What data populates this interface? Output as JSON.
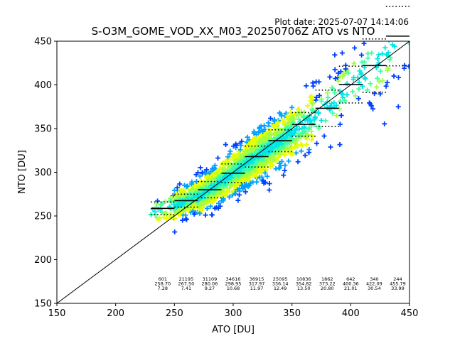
{
  "plot_date": "Plot date: 2025-07-07 14:14:06",
  "chart_data": {
    "type": "scatter",
    "title": "S-O3M_GOME_VOD_XX_M03_20250706Z ATO vs NTO",
    "xlabel": "ATO [DU]",
    "ylabel": "NTO [DU]",
    "xlim": [
      150,
      450
    ],
    "ylim": [
      150,
      450
    ],
    "xticks": [
      "150",
      "200",
      "250",
      "300",
      "350",
      "400",
      "450"
    ],
    "yticks": [
      "150",
      "200",
      "250",
      "300",
      "350",
      "400",
      "450"
    ],
    "grid": false,
    "one_to_one_line": true,
    "marker": "+",
    "density_colors": [
      "#0040ff",
      "#00a0ff",
      "#00e5e5",
      "#40ffa0",
      "#a0ff40",
      "#e5ff00",
      "#ffc000"
    ],
    "bins": [
      {
        "x_low": 230,
        "x_high": 250,
        "count": "601",
        "mean": "258.70",
        "std": "7.28",
        "mean_val": 258.7,
        "std_val": 7.28
      },
      {
        "x_low": 250,
        "x_high": 270,
        "count": "21195",
        "mean": "267.50",
        "std": "7.41",
        "mean_val": 267.5,
        "std_val": 7.41
      },
      {
        "x_low": 270,
        "x_high": 290,
        "count": "31109",
        "mean": "280.06",
        "std": "9.27",
        "mean_val": 280.06,
        "std_val": 9.27
      },
      {
        "x_low": 290,
        "x_high": 310,
        "count": "34616",
        "mean": "298.95",
        "std": "10.68",
        "mean_val": 298.95,
        "std_val": 10.68
      },
      {
        "x_low": 310,
        "x_high": 330,
        "count": "36915",
        "mean": "317.97",
        "std": "11.97",
        "mean_val": 317.97,
        "std_val": 11.97
      },
      {
        "x_low": 330,
        "x_high": 350,
        "count": "25095",
        "mean": "336.14",
        "std": "12.49",
        "mean_val": 336.14,
        "std_val": 12.49
      },
      {
        "x_low": 350,
        "x_high": 370,
        "count": "10836",
        "mean": "354.82",
        "std": "13.50",
        "mean_val": 354.82,
        "std_val": 13.5
      },
      {
        "x_low": 370,
        "x_high": 390,
        "count": "1862",
        "mean": "373.22",
        "std": "20.80",
        "mean_val": 373.22,
        "std_val": 20.8
      },
      {
        "x_low": 390,
        "x_high": 410,
        "count": "642",
        "mean": "400.36",
        "std": "21.01",
        "mean_val": 400.36,
        "std_val": 21.01
      },
      {
        "x_low": 410,
        "x_high": 430,
        "count": "340",
        "mean": "422.09",
        "std": "30.54",
        "mean_val": 422.09,
        "std_val": 30.54
      },
      {
        "x_low": 430,
        "x_high": 450,
        "count": "244",
        "mean": "455.79",
        "std": "33.99",
        "mean_val": 455.79,
        "std_val": 33.99
      }
    ]
  }
}
